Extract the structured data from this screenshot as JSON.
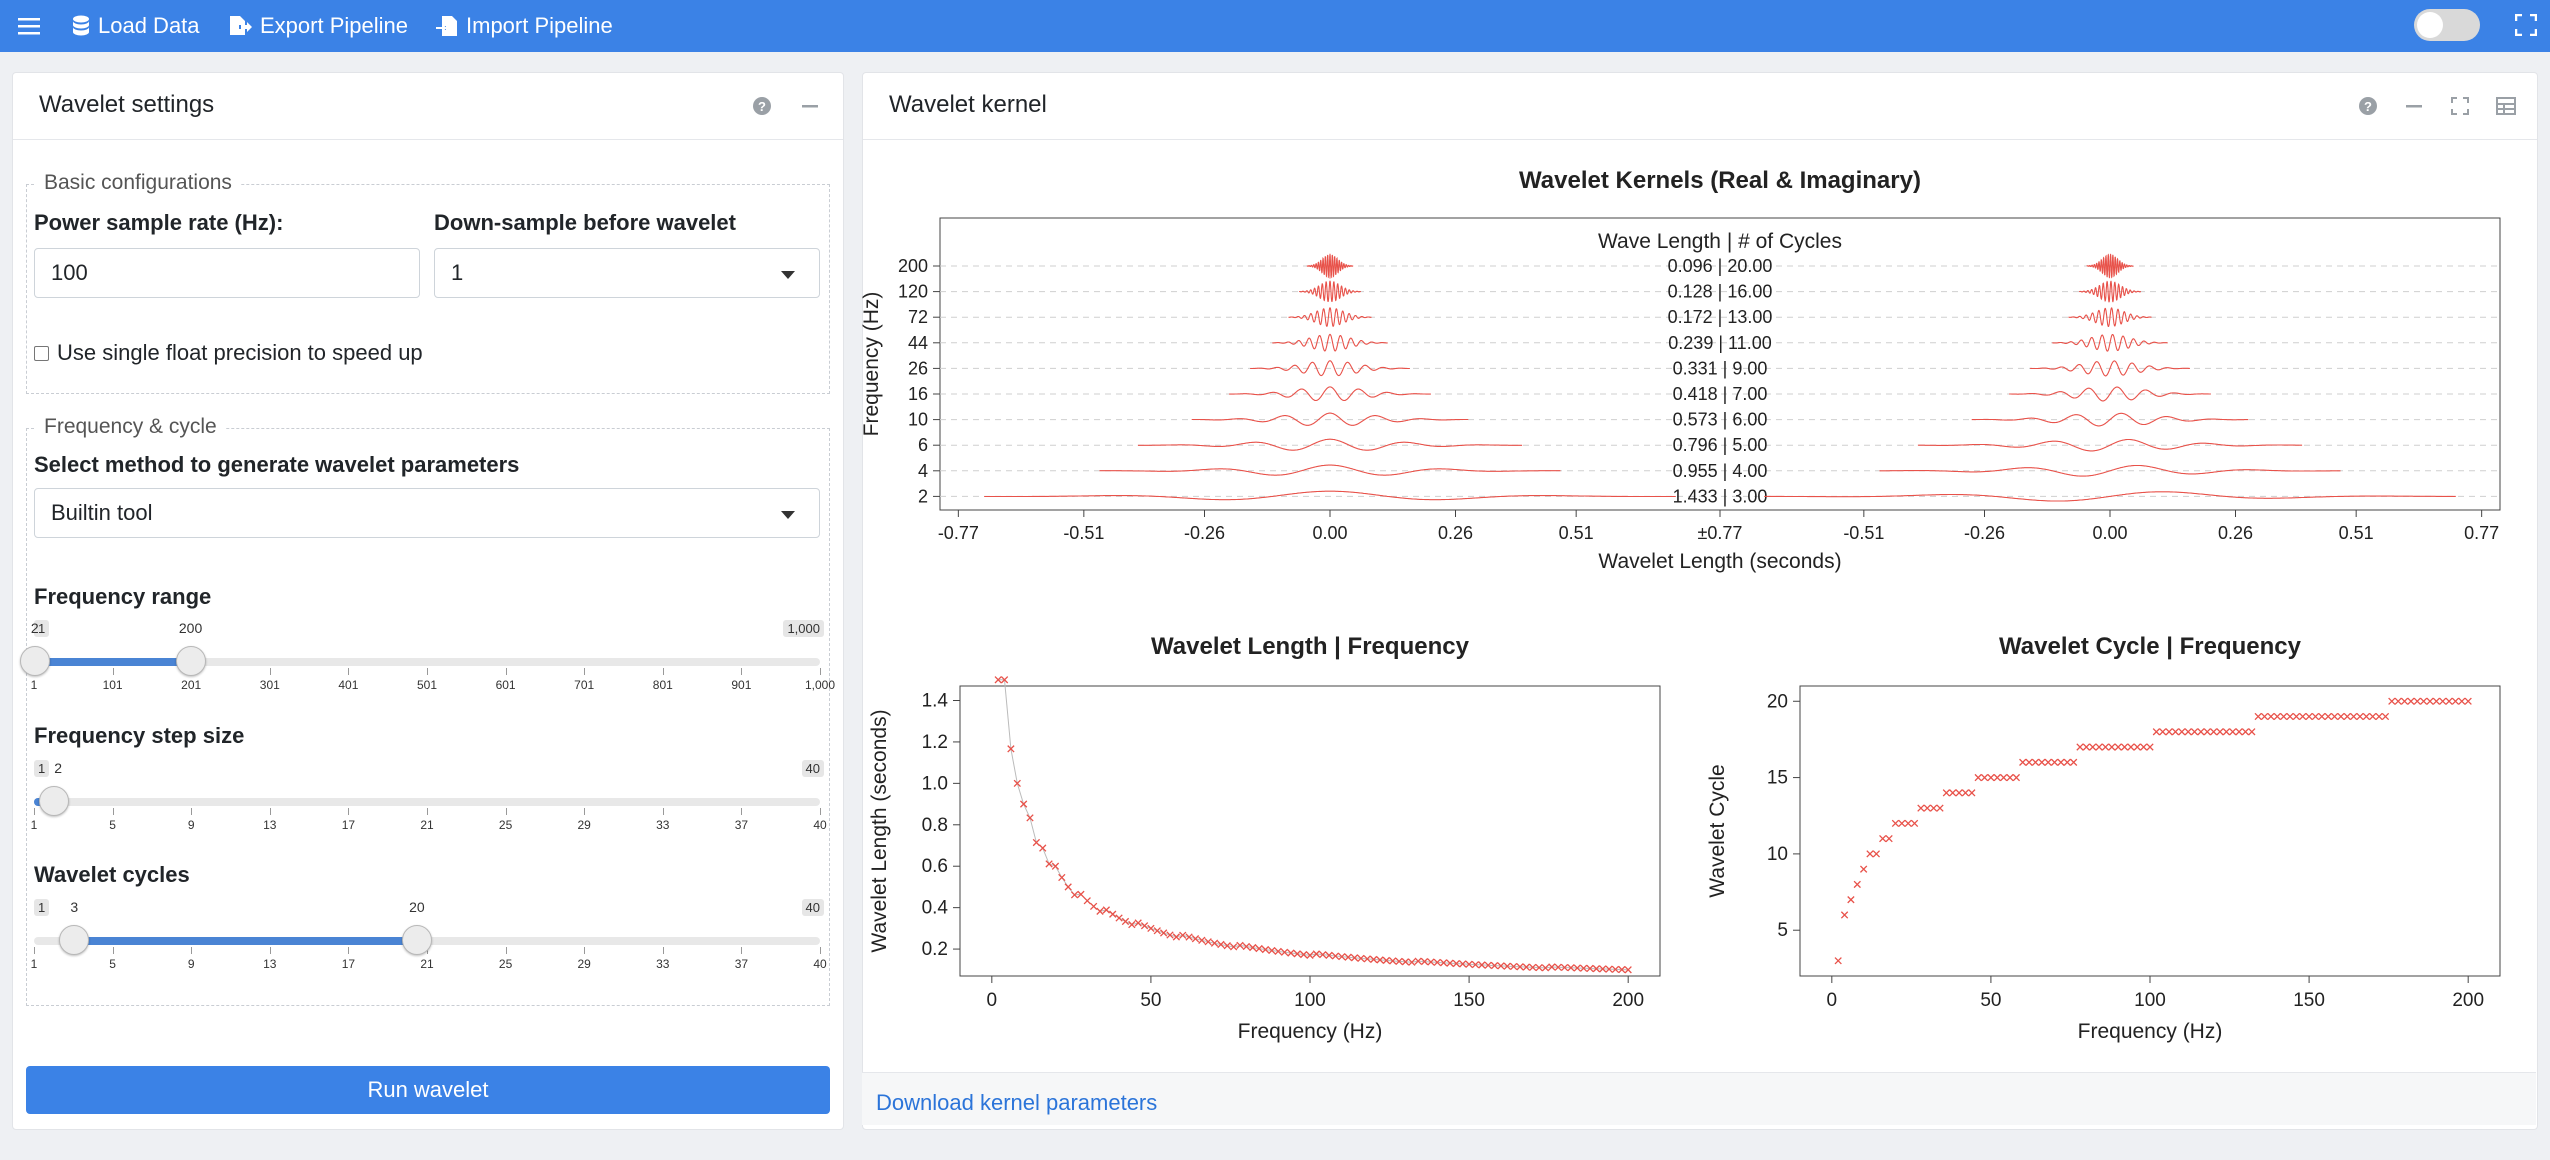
{
  "topbar": {
    "menu_icon": "hamburger-icon",
    "load_data": "Load Data",
    "export_pipeline": "Export Pipeline",
    "import_pipeline": "Import Pipeline"
  },
  "settings": {
    "title": "Wavelet settings",
    "basic_legend": "Basic configurations",
    "power_rate_label": "Power sample rate (Hz):",
    "power_rate_value": "100",
    "downsample_label": "Down-sample before wavelet",
    "downsample_value": "1",
    "float_label": "Use single float precision to speed up",
    "freq_legend": "Frequency & cycle",
    "method_label": "Select method to generate wavelet parameters",
    "method_value": "Builtin tool",
    "freq_range_label": "Frequency range",
    "freq_range": {
      "min": 1,
      "max": 1000,
      "from": 2,
      "to": 200,
      "min_label": "1",
      "max_label": "1,000",
      "from_label": "2",
      "to_label": "200",
      "ticks": [
        "1",
        "101",
        "201",
        "301",
        "401",
        "501",
        "601",
        "701",
        "801",
        "901",
        "1,000"
      ]
    },
    "step_label": "Frequency step size",
    "step": {
      "min": 1,
      "max": 40,
      "value": 2,
      "min_label": "1",
      "max_label": "40",
      "value_label": "2",
      "ticks": [
        "1",
        "5",
        "9",
        "13",
        "17",
        "21",
        "25",
        "29",
        "33",
        "37",
        "40"
      ]
    },
    "cycles_label": "Wavelet cycles",
    "cycles": {
      "min": 1,
      "max": 40,
      "from": 3,
      "to": 20,
      "min_label": "1",
      "max_label": "40",
      "from_label": "3",
      "to_label": "20",
      "ticks": [
        "1",
        "5",
        "9",
        "13",
        "17",
        "21",
        "25",
        "29",
        "33",
        "37",
        "40"
      ]
    },
    "run_button": "Run wavelet"
  },
  "kernel": {
    "title": "Wavelet kernel",
    "download_link": "Download kernel parameters"
  },
  "chart_data": [
    {
      "type": "line",
      "title": "Wavelet Kernels (Real & Imaginary)",
      "xlabel": "Wavelet Length (seconds)",
      "ylabel": "Frequency (Hz)",
      "header": "Wave Length | # of Cycles",
      "x_tick_labels": [
        "-0.77",
        "-0.51",
        "-0.26",
        "0.00",
        "0.26",
        "0.51",
        "±0.77",
        "-0.51",
        "-0.26",
        "0.00",
        "0.26",
        "0.51",
        "0.77"
      ],
      "frequencies": [
        "200",
        "120",
        "72",
        "44",
        "26",
        "16",
        "10",
        "6",
        "4",
        "2"
      ],
      "annotations": [
        "0.096 | 20.00",
        "0.128 | 16.00",
        "0.172 | 13.00",
        "0.239 | 11.00",
        "0.331 | 9.00",
        "0.418 | 7.00",
        "0.573 | 6.00",
        "0.796 | 5.00",
        "0.955 | 4.00",
        "1.433 | 3.00"
      ],
      "lengths": [
        0.096,
        0.128,
        0.172,
        0.239,
        0.331,
        0.418,
        0.573,
        0.796,
        0.955,
        1.433
      ],
      "cycles": [
        20,
        16,
        13,
        11,
        9,
        7,
        6,
        5,
        4,
        3
      ],
      "color": "#e8524a"
    },
    {
      "type": "scatter",
      "title": "Wavelet Length | Frequency",
      "xlabel": "Frequency (Hz)",
      "ylabel": "Wavelet Length (seconds)",
      "xlim": [
        -10,
        210
      ],
      "ylim": [
        0.07,
        1.47
      ],
      "x_ticks": [
        0,
        50,
        100,
        150,
        200
      ],
      "y_ticks": [
        0.2,
        0.4,
        0.6,
        0.8,
        1.0,
        1.2,
        1.4
      ],
      "y_tick_labels": [
        "0.2",
        "0.4",
        "0.6",
        "0.8",
        "1.0",
        "1.2",
        "1.4"
      ],
      "series": [
        {
          "x_start": 2,
          "x_end": 200,
          "x_step": 2,
          "cycle_from": 3,
          "cycle_to": 20,
          "color": "#e8524a"
        }
      ]
    },
    {
      "type": "scatter",
      "title": "Wavelet Cycle | Frequency",
      "xlabel": "Frequency (Hz)",
      "ylabel": "Wavelet Cycle",
      "xlim": [
        -10,
        210
      ],
      "ylim": [
        2,
        21
      ],
      "x_ticks": [
        0,
        50,
        100,
        150,
        200
      ],
      "y_ticks": [
        5,
        10,
        15,
        20
      ],
      "series": [
        {
          "x_start": 2,
          "x_end": 200,
          "x_step": 2,
          "cycle_from": 3,
          "cycle_to": 20,
          "color": "#e8524a"
        }
      ]
    }
  ]
}
